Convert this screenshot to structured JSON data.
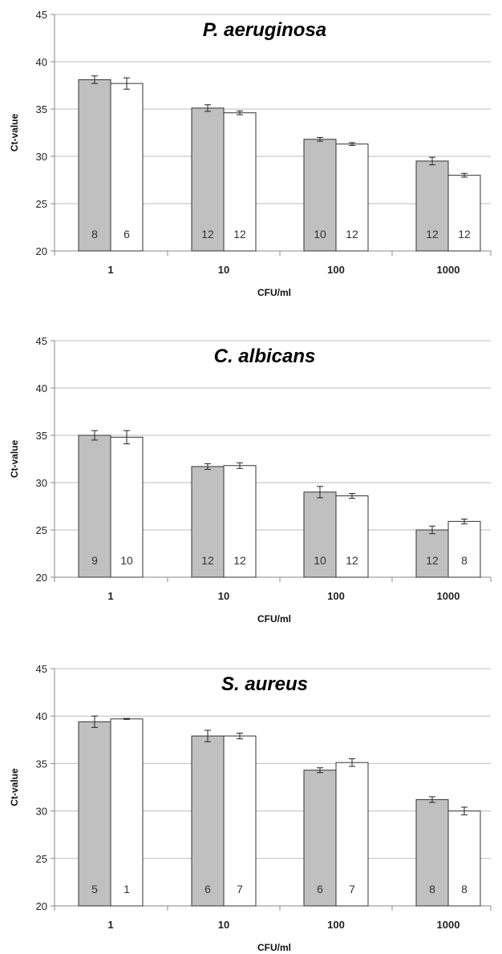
{
  "chart_data": [
    {
      "type": "bar",
      "title": "P. aeruginosa",
      "xlabel": "CFU/ml",
      "ylabel": "Ct-value",
      "ylim": [
        20,
        45
      ],
      "yticks": [
        20,
        25,
        30,
        35,
        40,
        45
      ],
      "grid": true,
      "categories": [
        "1",
        "10",
        "100",
        "1000"
      ],
      "colors": [
        "#c0c0c0",
        "#ffffff"
      ],
      "series": [
        {
          "values": [
            38.1,
            35.1,
            31.8,
            29.5
          ],
          "errors": [
            0.4,
            0.35,
            0.2,
            0.4
          ],
          "n_labels": [
            "8",
            "12",
            "10",
            "12"
          ]
        },
        {
          "values": [
            37.7,
            34.6,
            31.3,
            28.0
          ],
          "errors": [
            0.6,
            0.2,
            0.15,
            0.2
          ],
          "n_labels": [
            "6",
            "12",
            "12",
            "12"
          ]
        }
      ]
    },
    {
      "type": "bar",
      "title": "C. albicans",
      "xlabel": "CFU/ml",
      "ylabel": "Ct-value",
      "ylim": [
        20,
        45
      ],
      "yticks": [
        20,
        25,
        30,
        35,
        40,
        45
      ],
      "grid": true,
      "categories": [
        "1",
        "10",
        "100",
        "1000"
      ],
      "colors": [
        "#c0c0c0",
        "#ffffff"
      ],
      "series": [
        {
          "values": [
            35.0,
            31.7,
            29.0,
            25.0
          ],
          "errors": [
            0.5,
            0.3,
            0.6,
            0.4
          ],
          "n_labels": [
            "9",
            "12",
            "10",
            "12"
          ]
        },
        {
          "values": [
            34.8,
            31.8,
            28.6,
            25.9
          ],
          "errors": [
            0.7,
            0.3,
            0.25,
            0.25
          ],
          "n_labels": [
            "10",
            "12",
            "12",
            "8"
          ]
        }
      ]
    },
    {
      "type": "bar",
      "title": "S. aureus",
      "xlabel": "CFU/ml",
      "ylabel": "Ct-value",
      "ylim": [
        20,
        45
      ],
      "yticks": [
        20,
        25,
        30,
        35,
        40,
        45
      ],
      "grid": true,
      "categories": [
        "1",
        "10",
        "100",
        "1000"
      ],
      "colors": [
        "#c0c0c0",
        "#ffffff"
      ],
      "series": [
        {
          "values": [
            39.4,
            37.9,
            34.3,
            31.2
          ],
          "errors": [
            0.6,
            0.6,
            0.25,
            0.3
          ],
          "n_labels": [
            "5",
            "6",
            "6",
            "8"
          ]
        },
        {
          "values": [
            39.7,
            37.9,
            35.1,
            30.0
          ],
          "errors": [
            0.05,
            0.3,
            0.4,
            0.4
          ],
          "n_labels": [
            "1",
            "7",
            "7",
            "8"
          ]
        }
      ]
    }
  ]
}
